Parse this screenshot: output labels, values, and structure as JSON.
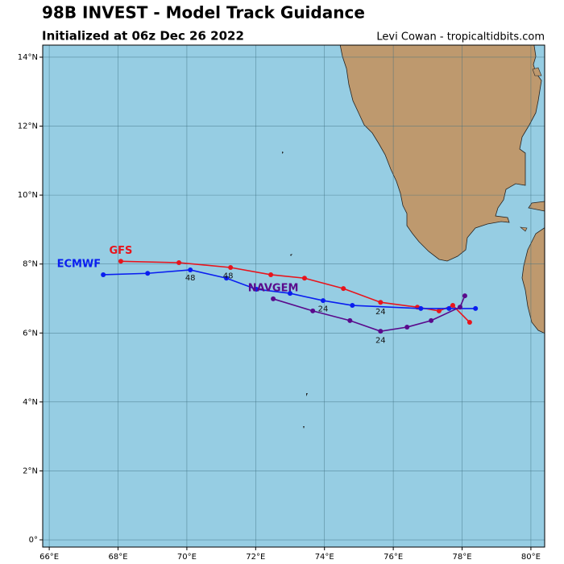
{
  "chart_data": {
    "type": "line",
    "title": "98B INVEST - Model Track Guidance",
    "subtitle": "Initialized at 06z Dec 26 2022",
    "credit": "Levi Cowan - tropicaltidbits.com",
    "xlim": [
      65.81,
      80.4
    ],
    "ylim": [
      -0.21,
      14.35
    ],
    "xticks": [
      {
        "value": 66,
        "label": "66°E"
      },
      {
        "value": 68,
        "label": "68°E"
      },
      {
        "value": 70,
        "label": "70°E"
      },
      {
        "value": 72,
        "label": "72°E"
      },
      {
        "value": 74,
        "label": "74°E"
      },
      {
        "value": 76,
        "label": "76°E"
      },
      {
        "value": 78,
        "label": "78°E"
      },
      {
        "value": 80,
        "label": "80°E"
      }
    ],
    "yticks": [
      {
        "value": 0,
        "label": "0°"
      },
      {
        "value": 2,
        "label": "2°N"
      },
      {
        "value": 4,
        "label": "4°N"
      },
      {
        "value": 6,
        "label": "6°N"
      },
      {
        "value": 8,
        "label": "8°N"
      },
      {
        "value": 10,
        "label": "10°N"
      },
      {
        "value": 12,
        "label": "12°N"
      },
      {
        "value": 14,
        "label": "14°N"
      }
    ],
    "grid": true,
    "series": [
      {
        "name": "GFS",
        "color": "#e8141c",
        "x": [
          68.08,
          69.77,
          71.27,
          72.44,
          73.42,
          74.55,
          75.63,
          76.7,
          77.33,
          77.73,
          78.22
        ],
        "y": [
          8.08,
          8.04,
          7.9,
          7.69,
          7.59,
          7.29,
          6.89,
          6.75,
          6.64,
          6.8,
          6.31
        ]
      },
      {
        "name": "ECMWF",
        "color": "#0a1ef0",
        "x": [
          67.57,
          68.86,
          70.1,
          71.15,
          72.02,
          73.0,
          73.96,
          74.81,
          76.8,
          77.62,
          78.39
        ],
        "y": [
          7.69,
          7.73,
          7.83,
          7.59,
          7.27,
          7.15,
          6.94,
          6.8,
          6.71,
          6.71,
          6.71
        ]
      },
      {
        "name": "NAVGEM",
        "color": "#5a0a8c",
        "x": [
          72.51,
          73.66,
          74.74,
          75.63,
          76.4,
          77.1,
          77.94,
          78.08
        ],
        "y": [
          6.99,
          6.64,
          6.36,
          6.05,
          6.17,
          6.36,
          6.75,
          7.08
        ]
      }
    ],
    "annotations": [
      {
        "text": "48",
        "x": 70.1,
        "y": 7.6
      },
      {
        "text": "48",
        "x": 71.2,
        "y": 7.65
      },
      {
        "text": "24",
        "x": 73.96,
        "y": 6.7
      },
      {
        "text": "24",
        "x": 75.63,
        "y": 6.62
      },
      {
        "text": "24",
        "x": 75.63,
        "y": 5.78
      }
    ]
  }
}
